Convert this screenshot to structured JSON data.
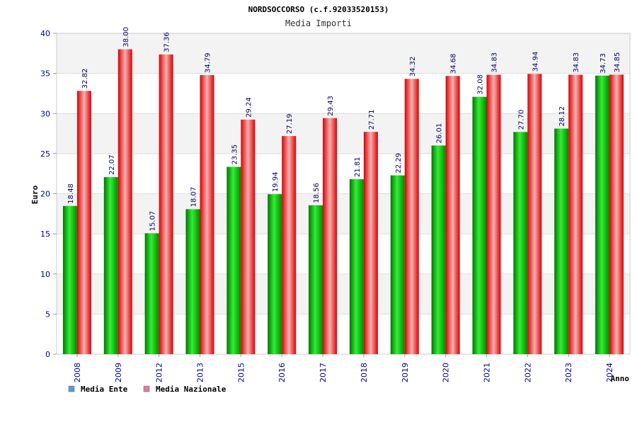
{
  "chart_data": {
    "type": "bar",
    "title": "NORDSOCCORSO (c.f.92033520153)",
    "subtitle": "Media Importi",
    "xlabel": "Anno",
    "ylabel": "Euro",
    "ylim": [
      0,
      40
    ],
    "yticks": [
      0,
      5,
      10,
      15,
      20,
      25,
      30,
      35,
      40
    ],
    "grid": true,
    "legend_position": "bottom-left",
    "categories": [
      "2008",
      "2009",
      "2012",
      "2013",
      "2015",
      "2016",
      "2017",
      "2018",
      "2019",
      "2020",
      "2021",
      "2022",
      "2023",
      "2024"
    ],
    "series": [
      {
        "name": "Media Ente",
        "color": "#00aa00",
        "legend_color": "#5b9bd5",
        "values": [
          18.48,
          22.07,
          15.07,
          18.07,
          23.35,
          19.94,
          18.56,
          21.81,
          22.29,
          26.01,
          32.08,
          27.7,
          28.12,
          34.73
        ],
        "labels": [
          "18.48",
          "22.07",
          "15.07",
          "18.07",
          "23.35",
          "19.94",
          "18.56",
          "21.81",
          "22.29",
          "26.01",
          "32.08",
          "27.70",
          "28.12",
          "34.73"
        ]
      },
      {
        "name": "Media Nazionale",
        "color": "#ee1111",
        "legend_color": "#e07aa0",
        "values": [
          32.82,
          38.0,
          37.36,
          34.79,
          29.24,
          27.19,
          29.43,
          27.71,
          34.32,
          34.68,
          34.83,
          34.94,
          34.83,
          34.85
        ],
        "labels": [
          "32.82",
          "38.00",
          "37.36",
          "34.79",
          "29.24",
          "27.19",
          "29.43",
          "27.71",
          "34.32",
          "34.68",
          "34.83",
          "34.94",
          "34.83",
          "34.85"
        ]
      }
    ]
  }
}
